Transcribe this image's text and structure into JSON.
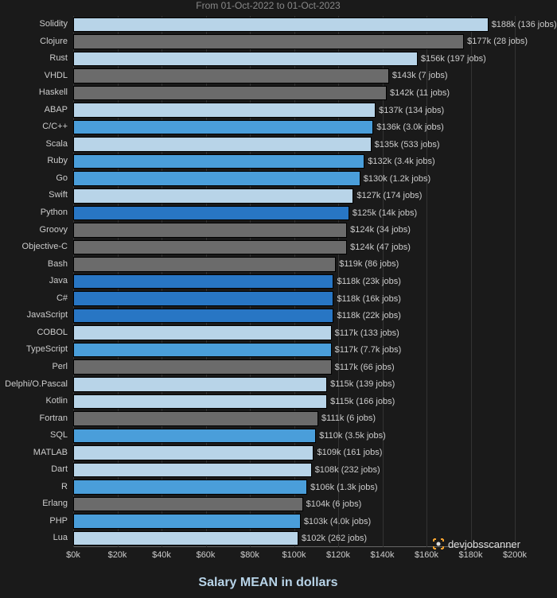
{
  "chart": {
    "type": "horizontal-bar",
    "subtitle": "From 01-Oct-2022 to 01-Oct-2023",
    "xaxis_title": "Salary MEAN in dollars",
    "xaxis_title_color": "#b8d4e8",
    "xaxis_title_fontsize": 16,
    "background_color": "#1a1a1a",
    "grid_color": "#333333",
    "text_color": "#cccccc",
    "label_fontsize": 11,
    "xlim": [
      0,
      200
    ],
    "xtick_step": 20,
    "xticks": [
      {
        "v": 0,
        "label": "$0k"
      },
      {
        "v": 20,
        "label": "$20k"
      },
      {
        "v": 40,
        "label": "$40k"
      },
      {
        "v": 60,
        "label": "$60k"
      },
      {
        "v": 80,
        "label": "$80k"
      },
      {
        "v": 100,
        "label": "$100k"
      },
      {
        "v": 120,
        "label": "$120k"
      },
      {
        "v": 140,
        "label": "$140k"
      },
      {
        "v": 160,
        "label": "$160k"
      },
      {
        "v": 180,
        "label": "$180k"
      },
      {
        "v": 200,
        "label": "$200k"
      }
    ],
    "bars": [
      {
        "name": "Solidity",
        "value": 188,
        "label": "$188k (136 jobs)",
        "color": "#b8d4e8"
      },
      {
        "name": "Clojure",
        "value": 177,
        "label": "$177k (28 jobs)",
        "color": "#6b6b6b"
      },
      {
        "name": "Rust",
        "value": 156,
        "label": "$156k (197 jobs)",
        "color": "#b8d4e8"
      },
      {
        "name": "VHDL",
        "value": 143,
        "label": "$143k (7 jobs)",
        "color": "#6b6b6b"
      },
      {
        "name": "Haskell",
        "value": 142,
        "label": "$142k (11 jobs)",
        "color": "#6b6b6b"
      },
      {
        "name": "ABAP",
        "value": 137,
        "label": "$137k (134 jobs)",
        "color": "#b8d4e8"
      },
      {
        "name": "C/C++",
        "value": 136,
        "label": "$136k (3.0k jobs)",
        "color": "#4a9eda"
      },
      {
        "name": "Scala",
        "value": 135,
        "label": "$135k (533 jobs)",
        "color": "#b8d4e8"
      },
      {
        "name": "Ruby",
        "value": 132,
        "label": "$132k (3.4k jobs)",
        "color": "#4a9eda"
      },
      {
        "name": "Go",
        "value": 130,
        "label": "$130k (1.2k jobs)",
        "color": "#4a9eda"
      },
      {
        "name": "Swift",
        "value": 127,
        "label": "$127k (174 jobs)",
        "color": "#b8d4e8"
      },
      {
        "name": "Python",
        "value": 125,
        "label": "$125k (14k jobs)",
        "color": "#2876c4"
      },
      {
        "name": "Groovy",
        "value": 124,
        "label": "$124k (34 jobs)",
        "color": "#6b6b6b"
      },
      {
        "name": "Objective-C",
        "value": 124,
        "label": "$124k (47 jobs)",
        "color": "#6b6b6b"
      },
      {
        "name": "Bash",
        "value": 119,
        "label": "$119k (86 jobs)",
        "color": "#6b6b6b"
      },
      {
        "name": "Java",
        "value": 118,
        "label": "$118k (23k jobs)",
        "color": "#2876c4"
      },
      {
        "name": "C#",
        "value": 118,
        "label": "$118k (16k jobs)",
        "color": "#2876c4"
      },
      {
        "name": "JavaScript",
        "value": 118,
        "label": "$118k (22k jobs)",
        "color": "#2876c4"
      },
      {
        "name": "COBOL",
        "value": 117,
        "label": "$117k (133 jobs)",
        "color": "#b8d4e8"
      },
      {
        "name": "TypeScript",
        "value": 117,
        "label": "$117k (7.7k jobs)",
        "color": "#4a9eda"
      },
      {
        "name": "Perl",
        "value": 117,
        "label": "$117k (66 jobs)",
        "color": "#6b6b6b"
      },
      {
        "name": "Delphi/O.Pascal",
        "value": 115,
        "label": "$115k (139 jobs)",
        "color": "#b8d4e8"
      },
      {
        "name": "Kotlin",
        "value": 115,
        "label": "$115k (166 jobs)",
        "color": "#b8d4e8"
      },
      {
        "name": "Fortran",
        "value": 111,
        "label": "$111k (6 jobs)",
        "color": "#6b6b6b"
      },
      {
        "name": "SQL",
        "value": 110,
        "label": "$110k (3.5k jobs)",
        "color": "#4a9eda"
      },
      {
        "name": "MATLAB",
        "value": 109,
        "label": "$109k (161 jobs)",
        "color": "#b8d4e8"
      },
      {
        "name": "Dart",
        "value": 108,
        "label": "$108k (232 jobs)",
        "color": "#b8d4e8"
      },
      {
        "name": "R",
        "value": 106,
        "label": "$106k (1.3k jobs)",
        "color": "#4a9eda"
      },
      {
        "name": "Erlang",
        "value": 104,
        "label": "$104k (6 jobs)",
        "color": "#6b6b6b"
      },
      {
        "name": "PHP",
        "value": 103,
        "label": "$103k (4.0k jobs)",
        "color": "#4a9eda"
      },
      {
        "name": "Lua",
        "value": 102,
        "label": "$102k (262 jobs)",
        "color": "#b8d4e8"
      }
    ],
    "watermark": "devjobsscanner"
  }
}
